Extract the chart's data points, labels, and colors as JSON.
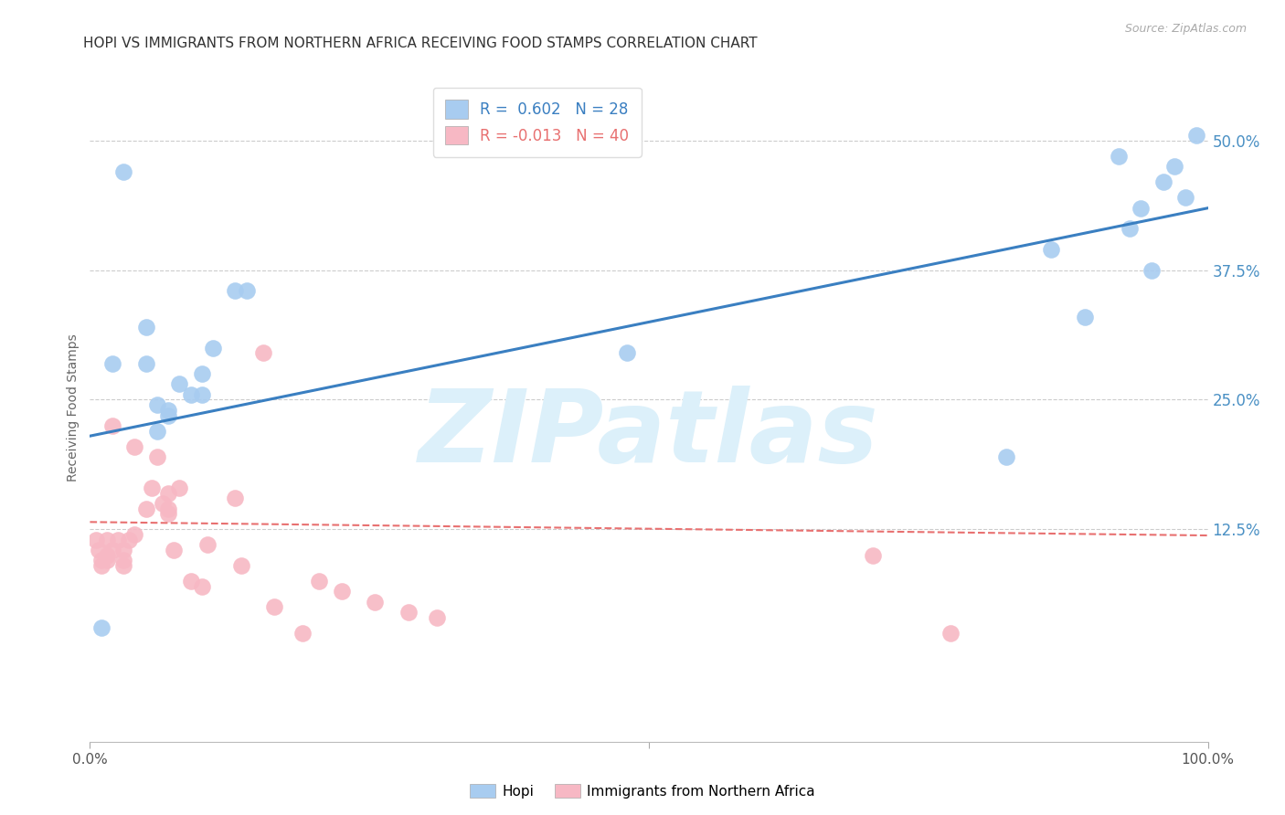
{
  "title": "HOPI VS IMMIGRANTS FROM NORTHERN AFRICA RECEIVING FOOD STAMPS CORRELATION CHART",
  "source": "Source: ZipAtlas.com",
  "ylabel": "Receiving Food Stamps",
  "ytick_labels": [
    "12.5%",
    "25.0%",
    "37.5%",
    "50.0%"
  ],
  "ytick_values": [
    0.125,
    0.25,
    0.375,
    0.5
  ],
  "xlim": [
    0.0,
    1.0
  ],
  "ylim": [
    -0.08,
    0.565
  ],
  "legend_blue_r": "R =  0.602",
  "legend_blue_n": "N = 28",
  "legend_pink_r": "R = -0.013",
  "legend_pink_n": "N = 40",
  "blue_scatter_x": [
    0.01,
    0.02,
    0.03,
    0.05,
    0.05,
    0.06,
    0.06,
    0.07,
    0.07,
    0.08,
    0.09,
    0.1,
    0.1,
    0.11,
    0.13,
    0.14,
    0.48,
    0.82,
    0.86,
    0.89,
    0.92,
    0.93,
    0.94,
    0.95,
    0.96,
    0.97,
    0.98,
    0.99
  ],
  "blue_scatter_y": [
    0.03,
    0.285,
    0.47,
    0.32,
    0.285,
    0.22,
    0.245,
    0.24,
    0.235,
    0.265,
    0.255,
    0.275,
    0.255,
    0.3,
    0.355,
    0.355,
    0.295,
    0.195,
    0.395,
    0.33,
    0.485,
    0.415,
    0.435,
    0.375,
    0.46,
    0.475,
    0.445,
    0.505
  ],
  "pink_scatter_x": [
    0.005,
    0.008,
    0.01,
    0.01,
    0.015,
    0.015,
    0.015,
    0.02,
    0.02,
    0.025,
    0.03,
    0.03,
    0.03,
    0.035,
    0.04,
    0.04,
    0.05,
    0.055,
    0.06,
    0.065,
    0.07,
    0.07,
    0.07,
    0.075,
    0.08,
    0.09,
    0.1,
    0.105,
    0.13,
    0.135,
    0.155,
    0.165,
    0.19,
    0.205,
    0.225,
    0.255,
    0.285,
    0.31,
    0.7,
    0.77
  ],
  "pink_scatter_y": [
    0.115,
    0.105,
    0.09,
    0.095,
    0.115,
    0.095,
    0.1,
    0.105,
    0.225,
    0.115,
    0.105,
    0.09,
    0.095,
    0.115,
    0.205,
    0.12,
    0.145,
    0.165,
    0.195,
    0.15,
    0.16,
    0.14,
    0.145,
    0.105,
    0.165,
    0.075,
    0.07,
    0.11,
    0.155,
    0.09,
    0.295,
    0.05,
    0.025,
    0.075,
    0.065,
    0.055,
    0.045,
    0.04,
    0.1,
    0.025
  ],
  "blue_line_x": [
    0.0,
    1.0
  ],
  "blue_line_y_start": 0.215,
  "blue_line_y_end": 0.435,
  "pink_line_x": [
    0.0,
    1.0
  ],
  "pink_line_y_start": 0.132,
  "pink_line_y_end": 0.119,
  "blue_color": "#A8CCF0",
  "pink_color": "#F7B8C4",
  "blue_line_color": "#3A7FC1",
  "pink_line_color": "#E87070",
  "watermark_zip": "ZIP",
  "watermark_atlas": "atlas",
  "watermark_color": "#DCF0FA",
  "background_color": "#FFFFFF",
  "grid_color": "#CCCCCC",
  "tick_label_color_blue": "#4A90C4",
  "title_fontsize": 11,
  "axis_label_fontsize": 10
}
